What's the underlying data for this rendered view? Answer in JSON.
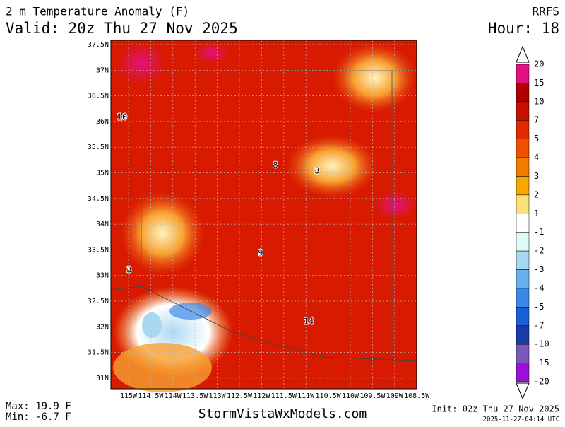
{
  "header": {
    "title": "2 m Temperature Anomaly (F)",
    "valid": "Valid: 20z Thu 27 Nov 2025",
    "model": "RRFS",
    "hour": "Hour: 18"
  },
  "map": {
    "lat_labels": [
      "37.5N",
      "37N",
      "36.5N",
      "36N",
      "35.5N",
      "35N",
      "34.5N",
      "34N",
      "33.5N",
      "33N",
      "32.5N",
      "32N",
      "31.5N",
      "31N"
    ],
    "lon_labels": [
      "115W",
      "114.5W",
      "114W",
      "113.5W",
      "113W",
      "112.5W",
      "112W",
      "111.5W",
      "111W",
      "110.5W",
      "110W",
      "109.5W",
      "109W",
      "108.5W"
    ],
    "station_values": [
      "10",
      "8",
      "3",
      "3",
      "9",
      "14"
    ]
  },
  "colorbar": {
    "labels": [
      "20",
      "15",
      "10",
      "7",
      "5",
      "4",
      "3",
      "2",
      "1",
      "-1",
      "-2",
      "-3",
      "-4",
      "-5",
      "-7",
      "-10",
      "-15",
      "-20"
    ],
    "colors": [
      "#e4107f",
      "#b00000",
      "#c81000",
      "#e02a00",
      "#f04e00",
      "#f57a00",
      "#f9a800",
      "#fce07a",
      "#ffffff",
      "#e0fafa",
      "#a8d8f0",
      "#6ab0ee",
      "#3c88e8",
      "#1c5ed8",
      "#1a3aa8",
      "#7a5ab8",
      "#9b10d8"
    ]
  },
  "footer": {
    "max": "Max: 19.9 F",
    "min": "Min: -6.7 F",
    "site": "StormVistaWxModels.com",
    "init": "Init: 02z Thu 27 Nov 2025",
    "stamp": "2025-11-27-04:14 UTC"
  }
}
